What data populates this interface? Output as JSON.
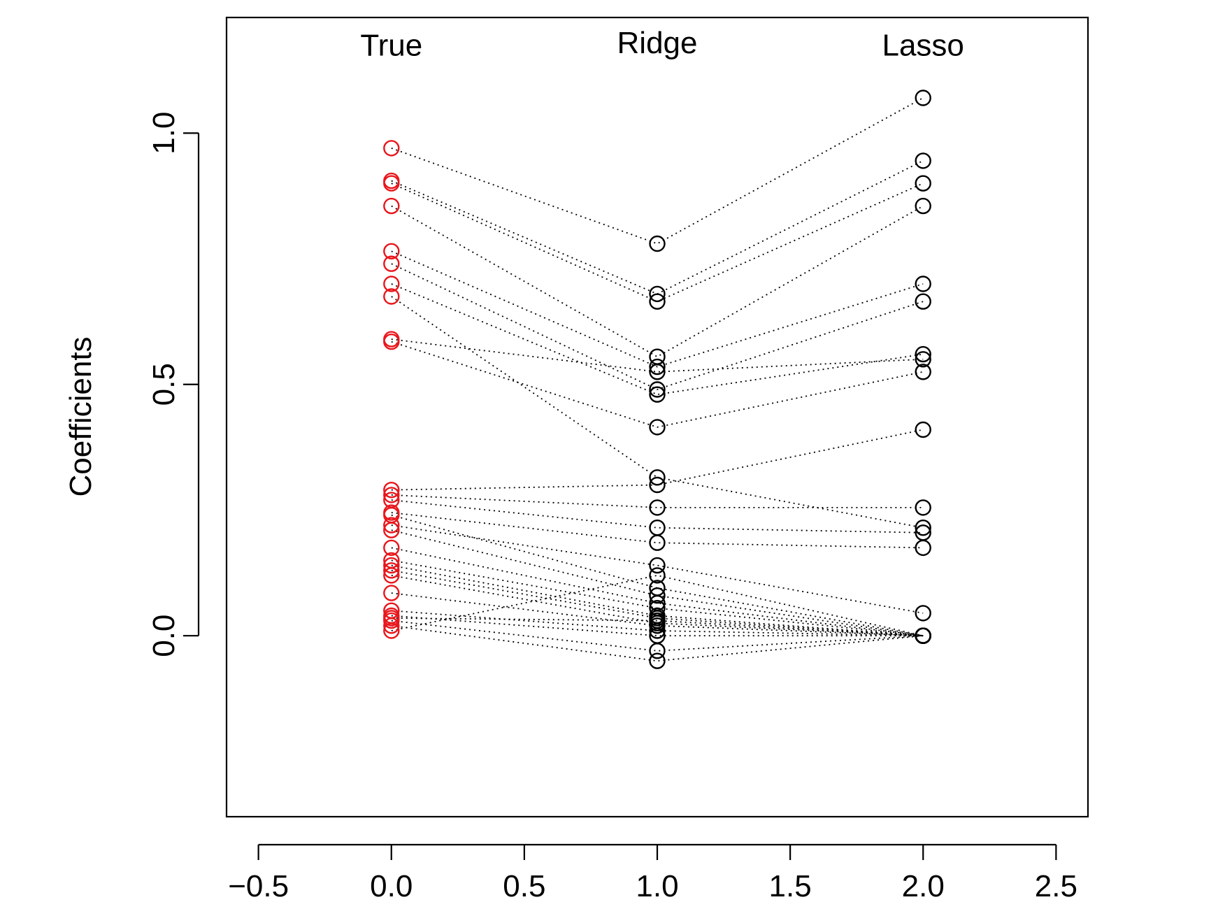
{
  "chart_data": {
    "type": "scatter",
    "ylabel": "Coefficients",
    "xlabel": "",
    "xlim": [
      -0.62,
      2.62
    ],
    "ylim": [
      -0.36,
      1.23
    ],
    "x_ticks": [
      -0.5,
      0.0,
      0.5,
      1.0,
      1.5,
      2.0,
      2.5
    ],
    "x_tick_labels": [
      "−0.5",
      "0.0",
      "0.5",
      "1.0",
      "1.5",
      "2.0",
      "2.5"
    ],
    "y_ticks": [
      0.0,
      0.5,
      1.0
    ],
    "y_tick_labels": [
      "0.0",
      "0.5",
      "1.0"
    ],
    "column_labels": [
      {
        "x": 0,
        "y": 1.175,
        "text": "True"
      },
      {
        "x": 1,
        "y": 1.18,
        "text": "Ridge"
      },
      {
        "x": 2,
        "y": 1.175,
        "text": "Lasso"
      }
    ],
    "colors": {
      "true_points": "#e8161b",
      "estimated_points": "#000000",
      "connectors": "#000000"
    },
    "grid": false,
    "series": [
      {
        "name": "True",
        "x": 0,
        "color": "#e8161b",
        "values": [
          0.97,
          0.905,
          0.9,
          0.855,
          0.765,
          0.74,
          0.7,
          0.675,
          0.59,
          0.585,
          0.29,
          0.28,
          0.27,
          0.245,
          0.24,
          0.22,
          0.21,
          0.175,
          0.15,
          0.14,
          0.13,
          0.12,
          0.085,
          0.05,
          0.04,
          0.035,
          0.03,
          0.02,
          0.01
        ]
      },
      {
        "name": "Ridge",
        "x": 1,
        "color": "#000000",
        "values": [
          0.78,
          0.68,
          0.665,
          0.555,
          0.535,
          0.525,
          0.49,
          0.48,
          0.415,
          0.315,
          0.3,
          0.255,
          0.215,
          0.185,
          0.14,
          0.12,
          0.095,
          0.08,
          0.065,
          0.055,
          0.04,
          0.035,
          0.025,
          0.02,
          0.01,
          0.0,
          -0.03,
          -0.05,
          0.03
        ]
      },
      {
        "name": "Lasso",
        "x": 2,
        "color": "#000000",
        "values": [
          1.07,
          0.945,
          0.9,
          0.855,
          0.7,
          0.665,
          0.56,
          0.55,
          0.525,
          0.41,
          0.255,
          0.215,
          0.205,
          0.175,
          0.045,
          0.0,
          0.0,
          0.0,
          0.0,
          0.0,
          0.0,
          0.0,
          0.0,
          0.0,
          0.0,
          0.0,
          0.0,
          0.0,
          0.0
        ]
      }
    ],
    "connections": [
      [
        0.97,
        0.78,
        1.07
      ],
      [
        0.905,
        0.68,
        0.945
      ],
      [
        0.9,
        0.665,
        0.9
      ],
      [
        0.855,
        0.555,
        0.855
      ],
      [
        0.765,
        0.535,
        0.7
      ],
      [
        0.74,
        0.49,
        0.665
      ],
      [
        0.7,
        0.48,
        0.56
      ],
      [
        0.675,
        0.315,
        0.215
      ],
      [
        0.59,
        0.525,
        0.55
      ],
      [
        0.585,
        0.415,
        0.525
      ],
      [
        0.29,
        0.3,
        0.41
      ],
      [
        0.28,
        0.255,
        0.255
      ],
      [
        0.27,
        0.215,
        0.205
      ],
      [
        0.245,
        0.185,
        0.175
      ],
      [
        0.24,
        0.095,
        0.0
      ],
      [
        0.22,
        0.14,
        0.045
      ],
      [
        0.21,
        0.08,
        0.0
      ],
      [
        0.175,
        0.065,
        0.0
      ],
      [
        0.15,
        0.055,
        0.0
      ],
      [
        0.14,
        0.04,
        0.0
      ],
      [
        0.13,
        0.035,
        0.0
      ],
      [
        0.12,
        0.025,
        0.0
      ],
      [
        0.085,
        0.02,
        0.0
      ],
      [
        0.05,
        0.01,
        0.0
      ],
      [
        0.04,
        0.0,
        0.0
      ],
      [
        0.035,
        0.03,
        0.0
      ],
      [
        0.03,
        -0.03,
        0.0
      ],
      [
        0.02,
        -0.05,
        0.0
      ],
      [
        0.01,
        0.12,
        0.0
      ]
    ]
  }
}
